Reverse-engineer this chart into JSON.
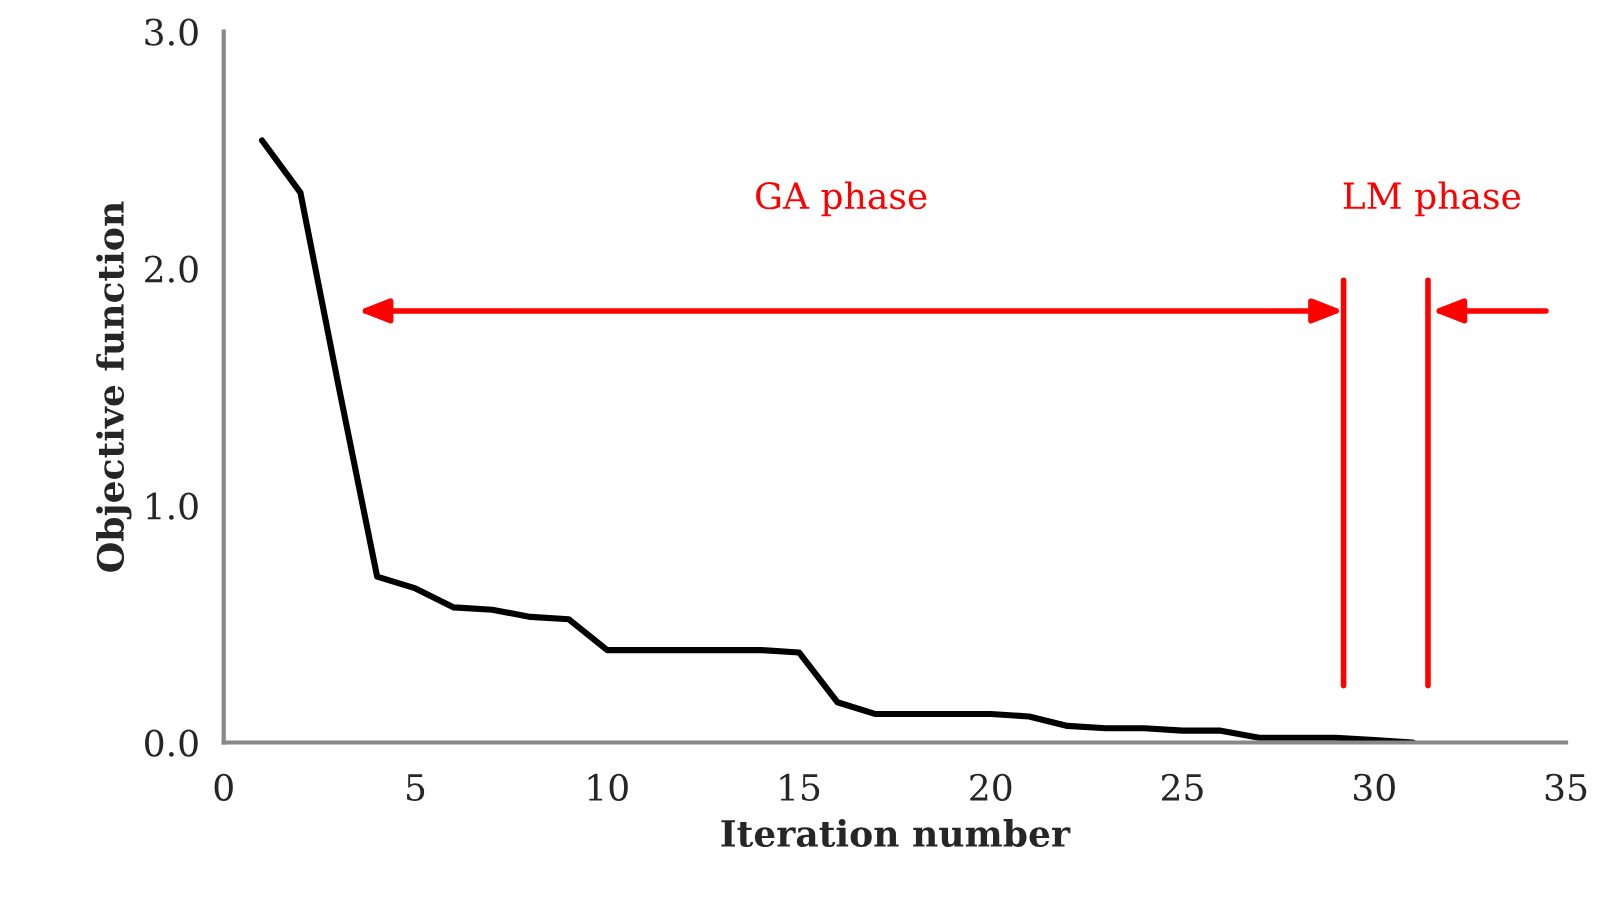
{
  "chart_data": {
    "type": "line",
    "xlabel": "Iteration number",
    "ylabel": "Objective function",
    "x": [
      1,
      2,
      3,
      4,
      5,
      6,
      7,
      8,
      9,
      10,
      11,
      12,
      13,
      14,
      15,
      16,
      17,
      18,
      19,
      20,
      21,
      22,
      23,
      24,
      25,
      26,
      27,
      28,
      29,
      30,
      31
    ],
    "series": [
      {
        "color": "#000000",
        "values": [
          2.54,
          2.32,
          1.5,
          0.7,
          0.65,
          0.57,
          0.56,
          0.53,
          0.52,
          0.39,
          0.39,
          0.39,
          0.39,
          0.39,
          0.38,
          0.17,
          0.12,
          0.12,
          0.12,
          0.12,
          0.11,
          0.07,
          0.06,
          0.06,
          0.05,
          0.05,
          0.02,
          0.02,
          0.02,
          0.01,
          0.0
        ]
      }
    ],
    "xlim": [
      0,
      35
    ],
    "xticks": [
      0,
      5,
      10,
      15,
      20,
      25,
      30,
      35
    ],
    "ylim": [
      0,
      3
    ],
    "yticks": [
      {
        "value": 0,
        "label": "0.0"
      },
      {
        "value": 1,
        "label": "1.0"
      },
      {
        "value": 2,
        "label": "2.0"
      },
      {
        "value": 3,
        "label": "3.0"
      }
    ],
    "ref_lines": [
      {
        "axis": "x",
        "value": 29.2,
        "color": "#ff0000"
      },
      {
        "axis": "x",
        "value": 31.4,
        "color": "#ff0000"
      }
    ],
    "annotations": [
      "GA phase",
      "LM phase"
    ],
    "grid": false,
    "legend": false,
    "marker": "none",
    "line_style": "solid"
  }
}
